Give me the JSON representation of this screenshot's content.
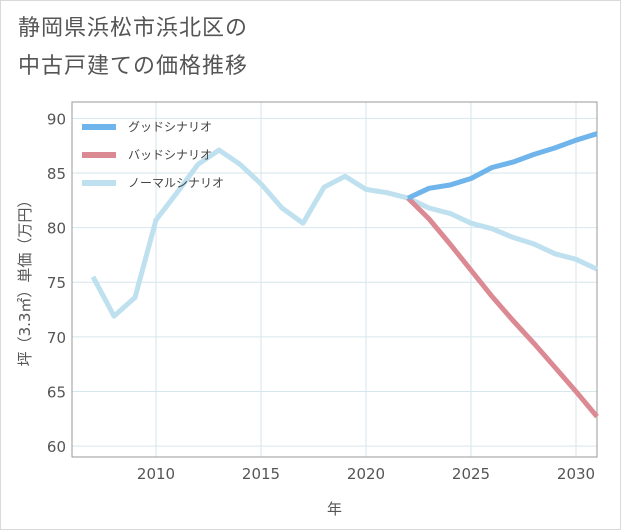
{
  "title": {
    "line1": "静岡県浜松市浜北区の",
    "line2": "中古戸建ての価格推移"
  },
  "colors": {
    "good": "#6fb4ea",
    "bad": "#db8a93",
    "normal": "#bfe0ee",
    "grid": "#d6e6ee",
    "axis": "#555555"
  },
  "chart_data": {
    "type": "line",
    "xlabel": "年",
    "ylabel": "坪（3.3㎡）単価（万円）",
    "xlim": [
      2006,
      2031
    ],
    "ylim": [
      59,
      91.5
    ],
    "xticks": [
      2010,
      2015,
      2020,
      2025,
      2030
    ],
    "yticks": [
      60,
      65,
      70,
      75,
      80,
      85,
      90
    ],
    "grid": true,
    "legend_position": "top-left",
    "series": [
      {
        "name": "グッドシナリオ",
        "key": "good",
        "x": [
          2022,
          2023,
          2024,
          2025,
          2026,
          2027,
          2028,
          2029,
          2030,
          2031
        ],
        "y": [
          82.7,
          83.6,
          83.9,
          84.5,
          85.5,
          86.0,
          86.7,
          87.3,
          88.0,
          88.6
        ]
      },
      {
        "name": "バッドシナリオ",
        "key": "bad",
        "x": [
          2022,
          2023,
          2024,
          2025,
          2026,
          2027,
          2028,
          2029,
          2030,
          2031
        ],
        "y": [
          82.7,
          80.8,
          78.5,
          76.1,
          73.7,
          71.5,
          69.4,
          67.2,
          65.0,
          62.7
        ]
      },
      {
        "name": "ノーマルシナリオ",
        "key": "normal",
        "x": [
          2007,
          2008,
          2009,
          2010,
          2011,
          2012,
          2013,
          2014,
          2015,
          2016,
          2017,
          2018,
          2019,
          2020,
          2021,
          2022,
          2023,
          2024,
          2025,
          2026,
          2027,
          2028,
          2029,
          2030,
          2031
        ],
        "y": [
          75.5,
          71.9,
          73.6,
          80.7,
          83.2,
          85.8,
          87.1,
          85.8,
          84.0,
          81.8,
          80.4,
          83.7,
          84.7,
          83.5,
          83.2,
          82.7,
          81.8,
          81.3,
          80.4,
          79.9,
          79.1,
          78.5,
          77.6,
          77.1,
          76.2
        ]
      }
    ]
  }
}
